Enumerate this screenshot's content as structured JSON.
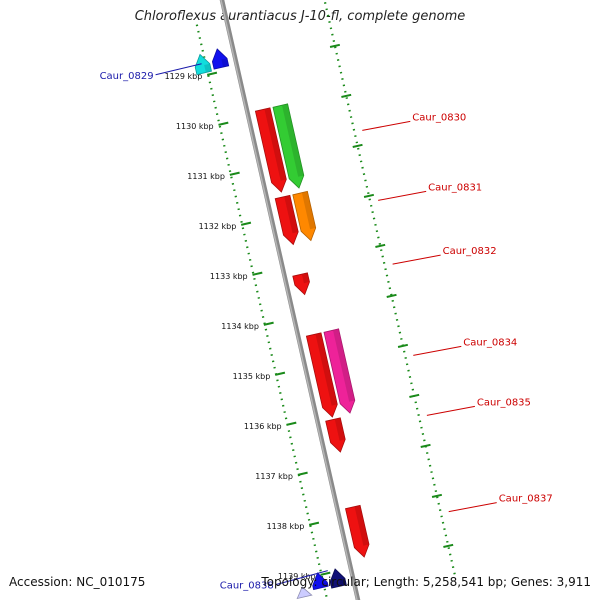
{
  "title": "Chloroflexus aurantiacus J-10-fl, complete genome",
  "accession": "Accession: NC_010175",
  "topology": "Topology: circular; Length: 5,258,541 bp; Genes: 3,911",
  "colors": {
    "backbone": "#8a8a8a",
    "tick": "#1a8a1a",
    "forward_label": "#cc0000",
    "reverse_label": "#1a1aaa",
    "red": "#ee1111",
    "green": "#33cc33",
    "orange": "#ff8800",
    "magenta": "#ee2299",
    "cyan": "#11dddd",
    "blue": "#1111ee",
    "navy": "#111177",
    "lightblue": "#ccccff"
  },
  "ticks": [
    "1129 kbp",
    "1130 kbp",
    "1131 kbp",
    "1132 kbp",
    "1133 kbp",
    "1134 kbp",
    "1135 kbp",
    "1136 kbp",
    "1137 kbp",
    "1138 kbp",
    "1139 kbp"
  ],
  "genes": [
    {
      "label": "Caur_0829",
      "strand": "reverse",
      "color": "cyan",
      "start_kbp": 1128.58,
      "end_kbp": 1128.95,
      "lane": 2
    },
    {
      "label": "",
      "strand": "reverse",
      "color": "blue",
      "start_kbp": 1128.55,
      "end_kbp": 1128.92,
      "lane": 1
    },
    {
      "label": "Caur_0830",
      "strand": "forward",
      "color": "red",
      "start_kbp": 1129.9,
      "end_kbp": 1131.55,
      "lane": 1
    },
    {
      "label": "",
      "strand": "forward",
      "color": "green",
      "start_kbp": 1129.9,
      "end_kbp": 1131.55,
      "lane": 2
    },
    {
      "label": "Caur_0831",
      "strand": "forward",
      "color": "red",
      "start_kbp": 1131.65,
      "end_kbp": 1132.6,
      "lane": 1
    },
    {
      "label": "",
      "strand": "forward",
      "color": "orange",
      "start_kbp": 1131.65,
      "end_kbp": 1132.6,
      "lane": 2
    },
    {
      "label": "Caur_0832",
      "strand": "forward",
      "color": "red",
      "start_kbp": 1133.2,
      "end_kbp": 1133.6,
      "lane": 1
    },
    {
      "label": "Caur_0834",
      "strand": "forward",
      "color": "red",
      "start_kbp": 1134.4,
      "end_kbp": 1136.05,
      "lane": 1
    },
    {
      "label": "",
      "strand": "forward",
      "color": "magenta",
      "start_kbp": 1134.4,
      "end_kbp": 1136.05,
      "lane": 2
    },
    {
      "label": "Caur_0835",
      "strand": "forward",
      "color": "red",
      "start_kbp": 1136.1,
      "end_kbp": 1136.75,
      "lane": 1
    },
    {
      "label": "Caur_0837",
      "strand": "forward",
      "color": "red",
      "start_kbp": 1137.85,
      "end_kbp": 1138.85,
      "lane": 1
    },
    {
      "label": "Caur_0838",
      "strand": "reverse",
      "color": "navy",
      "start_kbp": 1138.95,
      "end_kbp": 1139.3,
      "lane": 1
    },
    {
      "label": "",
      "strand": "reverse",
      "color": "blue",
      "start_kbp": 1138.95,
      "end_kbp": 1139.25,
      "lane": 2
    },
    {
      "label": "",
      "strand": "reverse",
      "color": "lightblue",
      "start_kbp": 1139.15,
      "end_kbp": 1139.35,
      "lane": 3
    }
  ],
  "range_kbp": [
    1128.0,
    1139.6
  ]
}
